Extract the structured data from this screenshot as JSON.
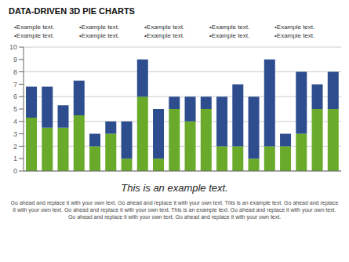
{
  "chart_data": {
    "type": "bar",
    "title": "DATA-DRIVEN 3D PIE CHARTS",
    "subtitle": "This is an example text.",
    "annotations": [
      "•Example text.",
      "•Example text.",
      "•Example text.",
      "•Example text.",
      "•Example text.",
      "•Example text.",
      "•Example text.",
      "•Example text.",
      "•Example text.",
      "•Example text.",
      "Go ahead and replace it with your own text. Go ahead and replace it with your own text. This is an example text. Go ahead and replace\nit with your own text. Go ahead and replace it with your own text. This is an example text. Go ahead and replace it with your own text.\nGo ahead and replace it with your own text. Go ahead and replace it with your own text."
    ],
    "categories": [
      null,
      null,
      null,
      null,
      null,
      null,
      null,
      null,
      null,
      null,
      null,
      null,
      null,
      null,
      null,
      null,
      null,
      null,
      null,
      null
    ],
    "series": [
      {
        "color": "#6aaa2a",
        "values": [
          4.3,
          3.5,
          3.5,
          4.5,
          2.0,
          3.0,
          1.0,
          6.0,
          1.0,
          5.0,
          4.0,
          5.0,
          2.0,
          2.0,
          1.0,
          2.0,
          2.0,
          3.0,
          5.0,
          5.0
        ]
      },
      {
        "color": "#2e4d8e",
        "values": [
          2.5,
          3.3,
          1.8,
          2.8,
          1.0,
          1.0,
          3.0,
          3.0,
          4.0,
          1.0,
          2.0,
          1.0,
          4.0,
          5.0,
          5.0,
          7.0,
          1.0,
          5.0,
          2.0,
          3.0
        ]
      }
    ],
    "stacked": true,
    "ylim": [
      0,
      10
    ],
    "yticks": [
      0,
      1,
      2,
      3,
      4,
      5,
      6,
      7,
      8,
      9,
      10
    ],
    "grid": true
  }
}
